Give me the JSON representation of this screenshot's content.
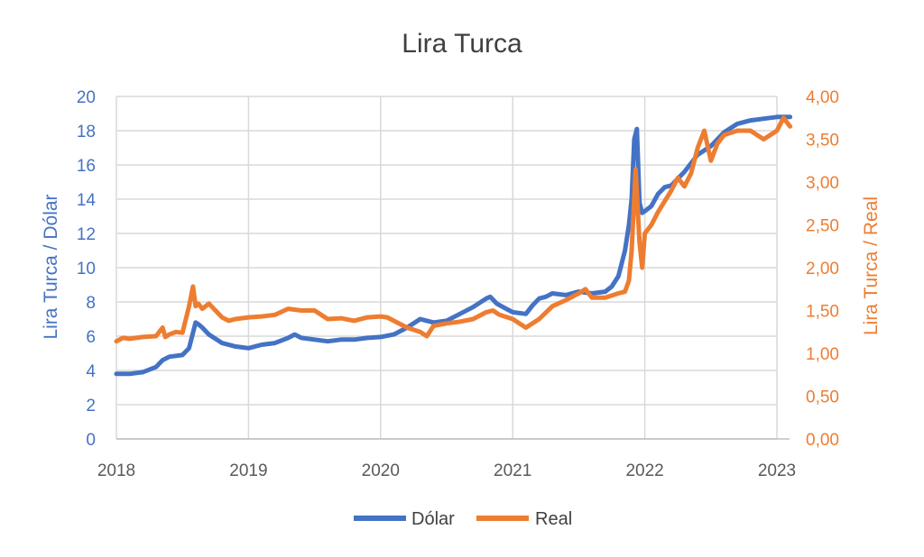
{
  "chart_data": {
    "type": "line",
    "title": "Lira Turca",
    "xlabel": "",
    "ylabel_left": "Lira Turca / Dólar",
    "ylabel_right": "Lira Turca / Real",
    "x_ticks": [
      "2018",
      "2019",
      "2020",
      "2021",
      "2022",
      "2023"
    ],
    "xlim": [
      2018.0,
      2023.1
    ],
    "y_left_ticks": [
      "0",
      "2",
      "4",
      "6",
      "8",
      "10",
      "12",
      "14",
      "16",
      "18",
      "20"
    ],
    "ylim_left": [
      0,
      20
    ],
    "y_right_ticks": [
      "0,00",
      "0,50",
      "1,00",
      "1,50",
      "2,00",
      "2,50",
      "3,00",
      "3,50",
      "4,00"
    ],
    "ylim_right": [
      0,
      4
    ],
    "grid": true,
    "legend_position": "bottom",
    "series": [
      {
        "name": "Dólar",
        "axis": "left",
        "color": "#4472C4",
        "x": [
          2018.0,
          2018.1,
          2018.2,
          2018.3,
          2018.35,
          2018.4,
          2018.5,
          2018.55,
          2018.6,
          2018.62,
          2018.65,
          2018.7,
          2018.8,
          2018.9,
          2019.0,
          2019.1,
          2019.2,
          2019.3,
          2019.35,
          2019.4,
          2019.5,
          2019.6,
          2019.7,
          2019.8,
          2019.9,
          2020.0,
          2020.1,
          2020.2,
          2020.3,
          2020.35,
          2020.4,
          2020.5,
          2020.6,
          2020.7,
          2020.8,
          2020.83,
          2020.88,
          2020.95,
          2021.0,
          2021.1,
          2021.15,
          2021.2,
          2021.25,
          2021.3,
          2021.4,
          2021.5,
          2021.6,
          2021.7,
          2021.75,
          2021.8,
          2021.85,
          2021.88,
          2021.9,
          2021.92,
          2021.94,
          2021.96,
          2021.98,
          2022.0,
          2022.05,
          2022.1,
          2022.15,
          2022.2,
          2022.3,
          2022.4,
          2022.5,
          2022.6,
          2022.7,
          2022.8,
          2022.9,
          2023.0,
          2023.1
        ],
        "values": [
          3.8,
          3.8,
          3.9,
          4.2,
          4.6,
          4.8,
          4.9,
          5.3,
          6.8,
          6.7,
          6.5,
          6.1,
          5.6,
          5.4,
          5.3,
          5.5,
          5.6,
          5.9,
          6.1,
          5.9,
          5.8,
          5.7,
          5.8,
          5.8,
          5.9,
          5.95,
          6.1,
          6.5,
          7.0,
          6.9,
          6.8,
          6.9,
          7.3,
          7.7,
          8.2,
          8.3,
          7.9,
          7.6,
          7.4,
          7.3,
          7.8,
          8.2,
          8.3,
          8.5,
          8.4,
          8.6,
          8.5,
          8.6,
          8.9,
          9.5,
          11.0,
          12.5,
          14.0,
          17.5,
          18.1,
          13.8,
          13.2,
          13.3,
          13.6,
          14.3,
          14.7,
          14.8,
          15.6,
          16.6,
          17.1,
          17.9,
          18.4,
          18.6,
          18.7,
          18.8,
          18.8
        ]
      },
      {
        "name": "Real",
        "axis": "right",
        "color": "#ED7D31",
        "x": [
          2018.0,
          2018.05,
          2018.1,
          2018.2,
          2018.3,
          2018.35,
          2018.37,
          2018.4,
          2018.45,
          2018.5,
          2018.55,
          2018.58,
          2018.6,
          2018.62,
          2018.65,
          2018.7,
          2018.75,
          2018.8,
          2018.85,
          2018.9,
          2019.0,
          2019.1,
          2019.2,
          2019.3,
          2019.4,
          2019.5,
          2019.6,
          2019.7,
          2019.8,
          2019.9,
          2020.0,
          2020.05,
          2020.1,
          2020.2,
          2020.3,
          2020.35,
          2020.4,
          2020.5,
          2020.6,
          2020.7,
          2020.8,
          2020.85,
          2020.9,
          2021.0,
          2021.05,
          2021.1,
          2021.2,
          2021.3,
          2021.4,
          2021.5,
          2021.55,
          2021.6,
          2021.7,
          2021.8,
          2021.85,
          2021.88,
          2021.9,
          2021.93,
          2021.96,
          2021.98,
          2022.0,
          2022.05,
          2022.1,
          2022.2,
          2022.25,
          2022.3,
          2022.35,
          2022.4,
          2022.45,
          2022.5,
          2022.55,
          2022.6,
          2022.7,
          2022.8,
          2022.85,
          2022.9,
          2023.0,
          2023.05,
          2023.1
        ],
        "values": [
          1.14,
          1.18,
          1.17,
          1.19,
          1.2,
          1.3,
          1.19,
          1.22,
          1.25,
          1.24,
          1.55,
          1.78,
          1.55,
          1.58,
          1.52,
          1.58,
          1.5,
          1.42,
          1.38,
          1.4,
          1.42,
          1.43,
          1.45,
          1.52,
          1.5,
          1.5,
          1.4,
          1.41,
          1.38,
          1.42,
          1.43,
          1.42,
          1.38,
          1.3,
          1.25,
          1.2,
          1.32,
          1.35,
          1.37,
          1.4,
          1.48,
          1.5,
          1.45,
          1.4,
          1.35,
          1.3,
          1.4,
          1.55,
          1.62,
          1.7,
          1.75,
          1.65,
          1.65,
          1.7,
          1.72,
          1.85,
          2.2,
          3.15,
          2.3,
          2.0,
          2.4,
          2.5,
          2.65,
          2.9,
          3.05,
          2.95,
          3.1,
          3.4,
          3.6,
          3.25,
          3.45,
          3.55,
          3.6,
          3.6,
          3.55,
          3.5,
          3.6,
          3.75,
          3.65
        ]
      }
    ]
  }
}
